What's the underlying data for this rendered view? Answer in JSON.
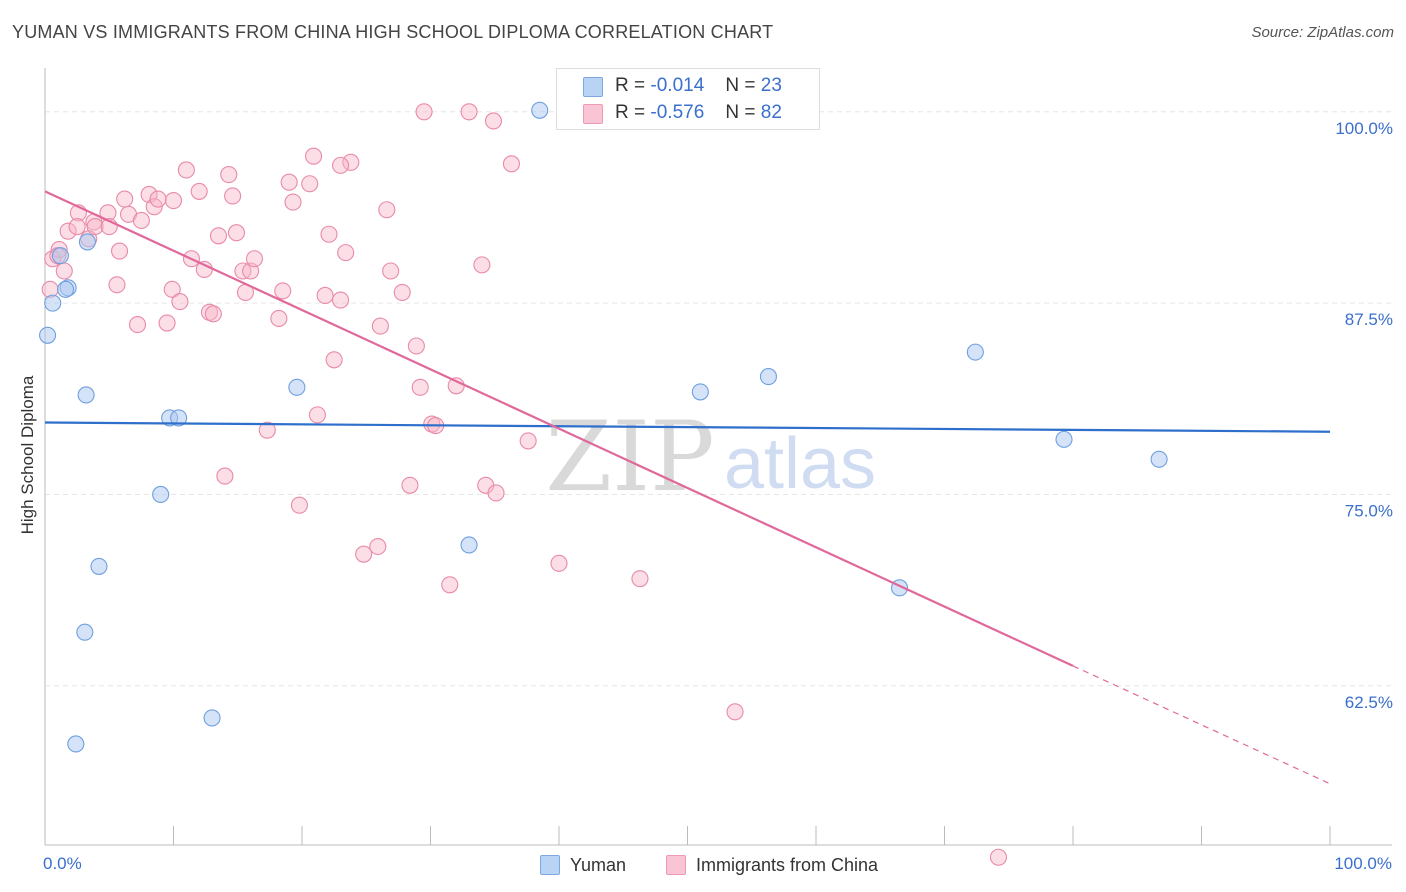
{
  "header": {
    "title": "YUMAN VS IMMIGRANTS FROM CHINA HIGH SCHOOL DIPLOMA CORRELATION CHART",
    "source": "Source: ZipAtlas.com"
  },
  "watermark": {
    "zip": "ZIP",
    "atlas": "atlas"
  },
  "legend": {
    "r_label": "R =",
    "n_label": "N =",
    "yuman": {
      "r": "-0.014",
      "n": "23",
      "name": "Yuman"
    },
    "china": {
      "r": "-0.576",
      "n": "82",
      "name": "Immigrants from China"
    }
  },
  "colors": {
    "yuman_fill": "#aac8f0",
    "yuman_stroke": "#6f9fe0",
    "yuman_line": "#2f6fcc",
    "china_fill": "#f7b6c8",
    "china_stroke": "#e98aa8",
    "china_line": "#e0689a",
    "axis_label": "#3a6fcc",
    "grid": "#e6e6e6"
  },
  "chart_data": {
    "type": "scatter",
    "title": "YUMAN VS IMMIGRANTS FROM CHINA HIGH SCHOOL DIPLOMA CORRELATION CHART",
    "xlabel": "",
    "ylabel": "High School Diploma",
    "xlim": [
      0,
      100
    ],
    "ylim": [
      52.1,
      102.6
    ],
    "x_tick_labels": [
      {
        "value": 0,
        "label": "0.0%"
      },
      {
        "value": 100,
        "label": "100.0%"
      }
    ],
    "y_tick_labels": [
      {
        "value": 100,
        "label": "100.0%"
      },
      {
        "value": 87.5,
        "label": "87.5%"
      },
      {
        "value": 75,
        "label": "75.0%"
      },
      {
        "value": 62.5,
        "label": "62.5%"
      }
    ],
    "series": [
      {
        "name": "Yuman",
        "r": -0.014,
        "n": 23,
        "points": [
          [
            0.2,
            85.4
          ],
          [
            0.6,
            87.5
          ],
          [
            1.2,
            90.6
          ],
          [
            1.8,
            88.5
          ],
          [
            1.6,
            88.4
          ],
          [
            3.3,
            91.5
          ],
          [
            3.2,
            81.5
          ],
          [
            9.7,
            80.0
          ],
          [
            10.4,
            80.0
          ],
          [
            9.0,
            75.0
          ],
          [
            4.2,
            70.3
          ],
          [
            3.1,
            66.0
          ],
          [
            2.4,
            58.7
          ],
          [
            13.0,
            60.4
          ],
          [
            19.6,
            82.0
          ],
          [
            33.0,
            71.7
          ],
          [
            38.5,
            100.1
          ],
          [
            51.0,
            81.7
          ],
          [
            56.3,
            82.7
          ],
          [
            72.4,
            84.3
          ],
          [
            79.3,
            78.6
          ],
          [
            86.7,
            77.3
          ],
          [
            66.5,
            68.9
          ]
        ],
        "trend": {
          "x": [
            0,
            100
          ],
          "y": [
            79.7,
            79.1
          ]
        }
      },
      {
        "name": "Immigrants from China",
        "r": -0.576,
        "n": 82,
        "points": [
          [
            0.4,
            88.4
          ],
          [
            0.6,
            90.4
          ],
          [
            1.1,
            91.0
          ],
          [
            1.5,
            89.6
          ],
          [
            1.8,
            92.2
          ],
          [
            2.6,
            93.4
          ],
          [
            2.5,
            92.5
          ],
          [
            3.4,
            91.7
          ],
          [
            3.8,
            92.8
          ],
          [
            3.9,
            92.5
          ],
          [
            4.9,
            93.4
          ],
          [
            5.0,
            92.5
          ],
          [
            5.6,
            88.7
          ],
          [
            6.2,
            94.3
          ],
          [
            6.5,
            93.3
          ],
          [
            7.2,
            86.1
          ],
          [
            7.5,
            92.9
          ],
          [
            8.1,
            94.6
          ],
          [
            8.5,
            93.8
          ],
          [
            8.8,
            94.3
          ],
          [
            9.5,
            86.2
          ],
          [
            9.9,
            88.4
          ],
          [
            10.0,
            94.2
          ],
          [
            10.5,
            87.6
          ],
          [
            11.0,
            96.2
          ],
          [
            11.4,
            90.4
          ],
          [
            12.0,
            94.8
          ],
          [
            12.4,
            89.7
          ],
          [
            12.8,
            86.9
          ],
          [
            13.1,
            86.8
          ],
          [
            13.5,
            91.9
          ],
          [
            14.0,
            76.2
          ],
          [
            14.3,
            95.9
          ],
          [
            14.6,
            94.5
          ],
          [
            14.9,
            92.1
          ],
          [
            15.4,
            89.6
          ],
          [
            15.6,
            88.2
          ],
          [
            16.0,
            89.6
          ],
          [
            16.3,
            90.4
          ],
          [
            17.3,
            79.2
          ],
          [
            18.2,
            86.5
          ],
          [
            18.5,
            88.3
          ],
          [
            19.0,
            95.4
          ],
          [
            19.3,
            94.1
          ],
          [
            19.8,
            74.3
          ],
          [
            20.6,
            95.3
          ],
          [
            20.9,
            97.1
          ],
          [
            21.2,
            80.2
          ],
          [
            21.8,
            88.0
          ],
          [
            22.1,
            92.0
          ],
          [
            22.5,
            83.8
          ],
          [
            23.0,
            87.7
          ],
          [
            23.4,
            90.8
          ],
          [
            23.8,
            96.7
          ],
          [
            24.8,
            71.1
          ],
          [
            25.9,
            71.6
          ],
          [
            26.1,
            86.0
          ],
          [
            26.6,
            93.6
          ],
          [
            26.9,
            89.6
          ],
          [
            27.8,
            88.2
          ],
          [
            28.4,
            75.6
          ],
          [
            28.9,
            84.7
          ],
          [
            29.2,
            82.0
          ],
          [
            29.5,
            100.0
          ],
          [
            30.1,
            79.6
          ],
          [
            30.4,
            79.5
          ],
          [
            31.5,
            69.1
          ],
          [
            32.0,
            82.1
          ],
          [
            33.0,
            100.0
          ],
          [
            34.0,
            90.0
          ],
          [
            34.3,
            75.6
          ],
          [
            34.9,
            99.4
          ],
          [
            35.1,
            75.1
          ],
          [
            36.3,
            96.6
          ],
          [
            37.6,
            78.5
          ],
          [
            40.0,
            70.5
          ],
          [
            46.3,
            69.5
          ],
          [
            53.7,
            60.8
          ],
          [
            74.2,
            51.3
          ],
          [
            1.0,
            90.6
          ],
          [
            5.8,
            90.9
          ],
          [
            23.0,
            96.5
          ]
        ],
        "trend": {
          "x": [
            0,
            80
          ],
          "y": [
            94.8,
            63.8
          ]
        },
        "trend_dashed": {
          "x": [
            80,
            100
          ],
          "y": [
            63.8,
            56.1
          ]
        }
      }
    ]
  }
}
